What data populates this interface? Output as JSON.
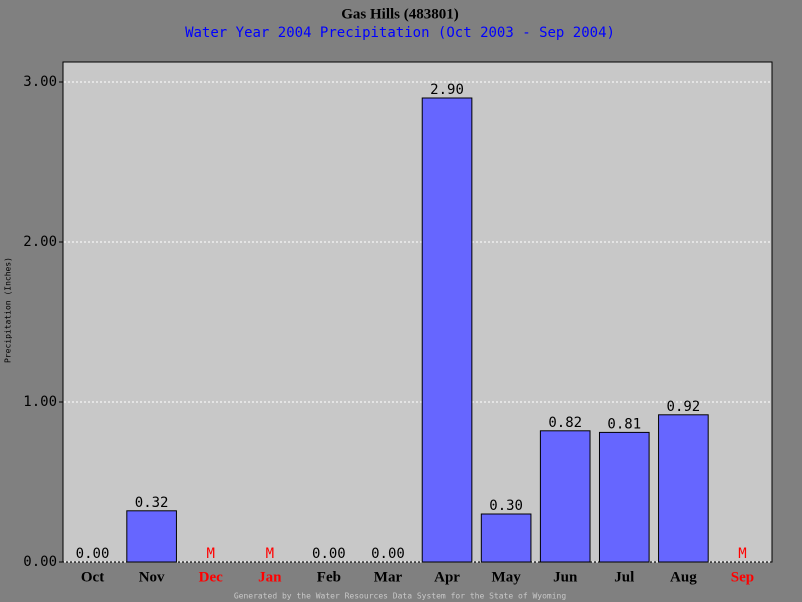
{
  "chart_data": {
    "type": "bar",
    "title": "Gas Hills (483801)",
    "subtitle": "Water Year 2004 Precipitation (Oct 2003 - Sep 2004)",
    "y_label": "Precipitation (Inches)",
    "footer": "Generated by the Water Resources Data System for the State of Wyoming",
    "categories": [
      "Oct",
      "Nov",
      "Dec",
      "Jan",
      "Feb",
      "Mar",
      "Apr",
      "May",
      "Jun",
      "Jul",
      "Aug",
      "Sep"
    ],
    "values": [
      0,
      0.32,
      null,
      null,
      0,
      0,
      2.9,
      0.3,
      0.82,
      0.81,
      0.92,
      null
    ],
    "value_labels": [
      "0.00",
      "0.32",
      "M",
      "M",
      "0.00",
      "0.00",
      "2.90",
      "0.30",
      "0.82",
      "0.81",
      "0.92",
      "M"
    ],
    "color": "#6666ff",
    "missing_color": "#ff0000",
    "ylim": [
      0,
      3.125
    ],
    "yticks": [
      {
        "value": 0,
        "label": "0.00"
      },
      {
        "value": 1,
        "label": "1.00"
      },
      {
        "value": 2,
        "label": "2.00"
      },
      {
        "value": 3,
        "label": "3.00"
      }
    ],
    "grid": true
  }
}
